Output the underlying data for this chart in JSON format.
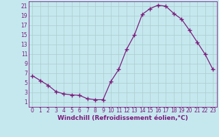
{
  "x": [
    0,
    1,
    2,
    3,
    4,
    5,
    6,
    7,
    8,
    9,
    10,
    11,
    12,
    13,
    14,
    15,
    16,
    17,
    18,
    19,
    20,
    21,
    22,
    23
  ],
  "y": [
    6.5,
    5.5,
    4.5,
    3.2,
    2.7,
    2.5,
    2.4,
    1.7,
    1.5,
    1.5,
    5.3,
    7.8,
    12.0,
    15.0,
    19.3,
    20.5,
    21.2,
    21.0,
    19.5,
    18.3,
    16.0,
    13.5,
    11.0,
    7.8
  ],
  "line_color": "#7b1a7b",
  "marker": "+",
  "marker_size": 4,
  "background_color": "#c5e8ef",
  "grid_color": "#aacccc",
  "xlabel": "Windchill (Refroidissement éolien,°C)",
  "xlim": [
    -0.5,
    23.5
  ],
  "ylim": [
    0,
    22
  ],
  "xticks": [
    0,
    1,
    2,
    3,
    4,
    5,
    6,
    7,
    8,
    9,
    10,
    11,
    12,
    13,
    14,
    15,
    16,
    17,
    18,
    19,
    20,
    21,
    22,
    23
  ],
  "yticks": [
    1,
    3,
    5,
    7,
    9,
    11,
    13,
    15,
    17,
    19,
    21
  ],
  "xlabel_fontsize": 6.5,
  "tick_fontsize": 5.5,
  "label_color": "#7b1a7b"
}
